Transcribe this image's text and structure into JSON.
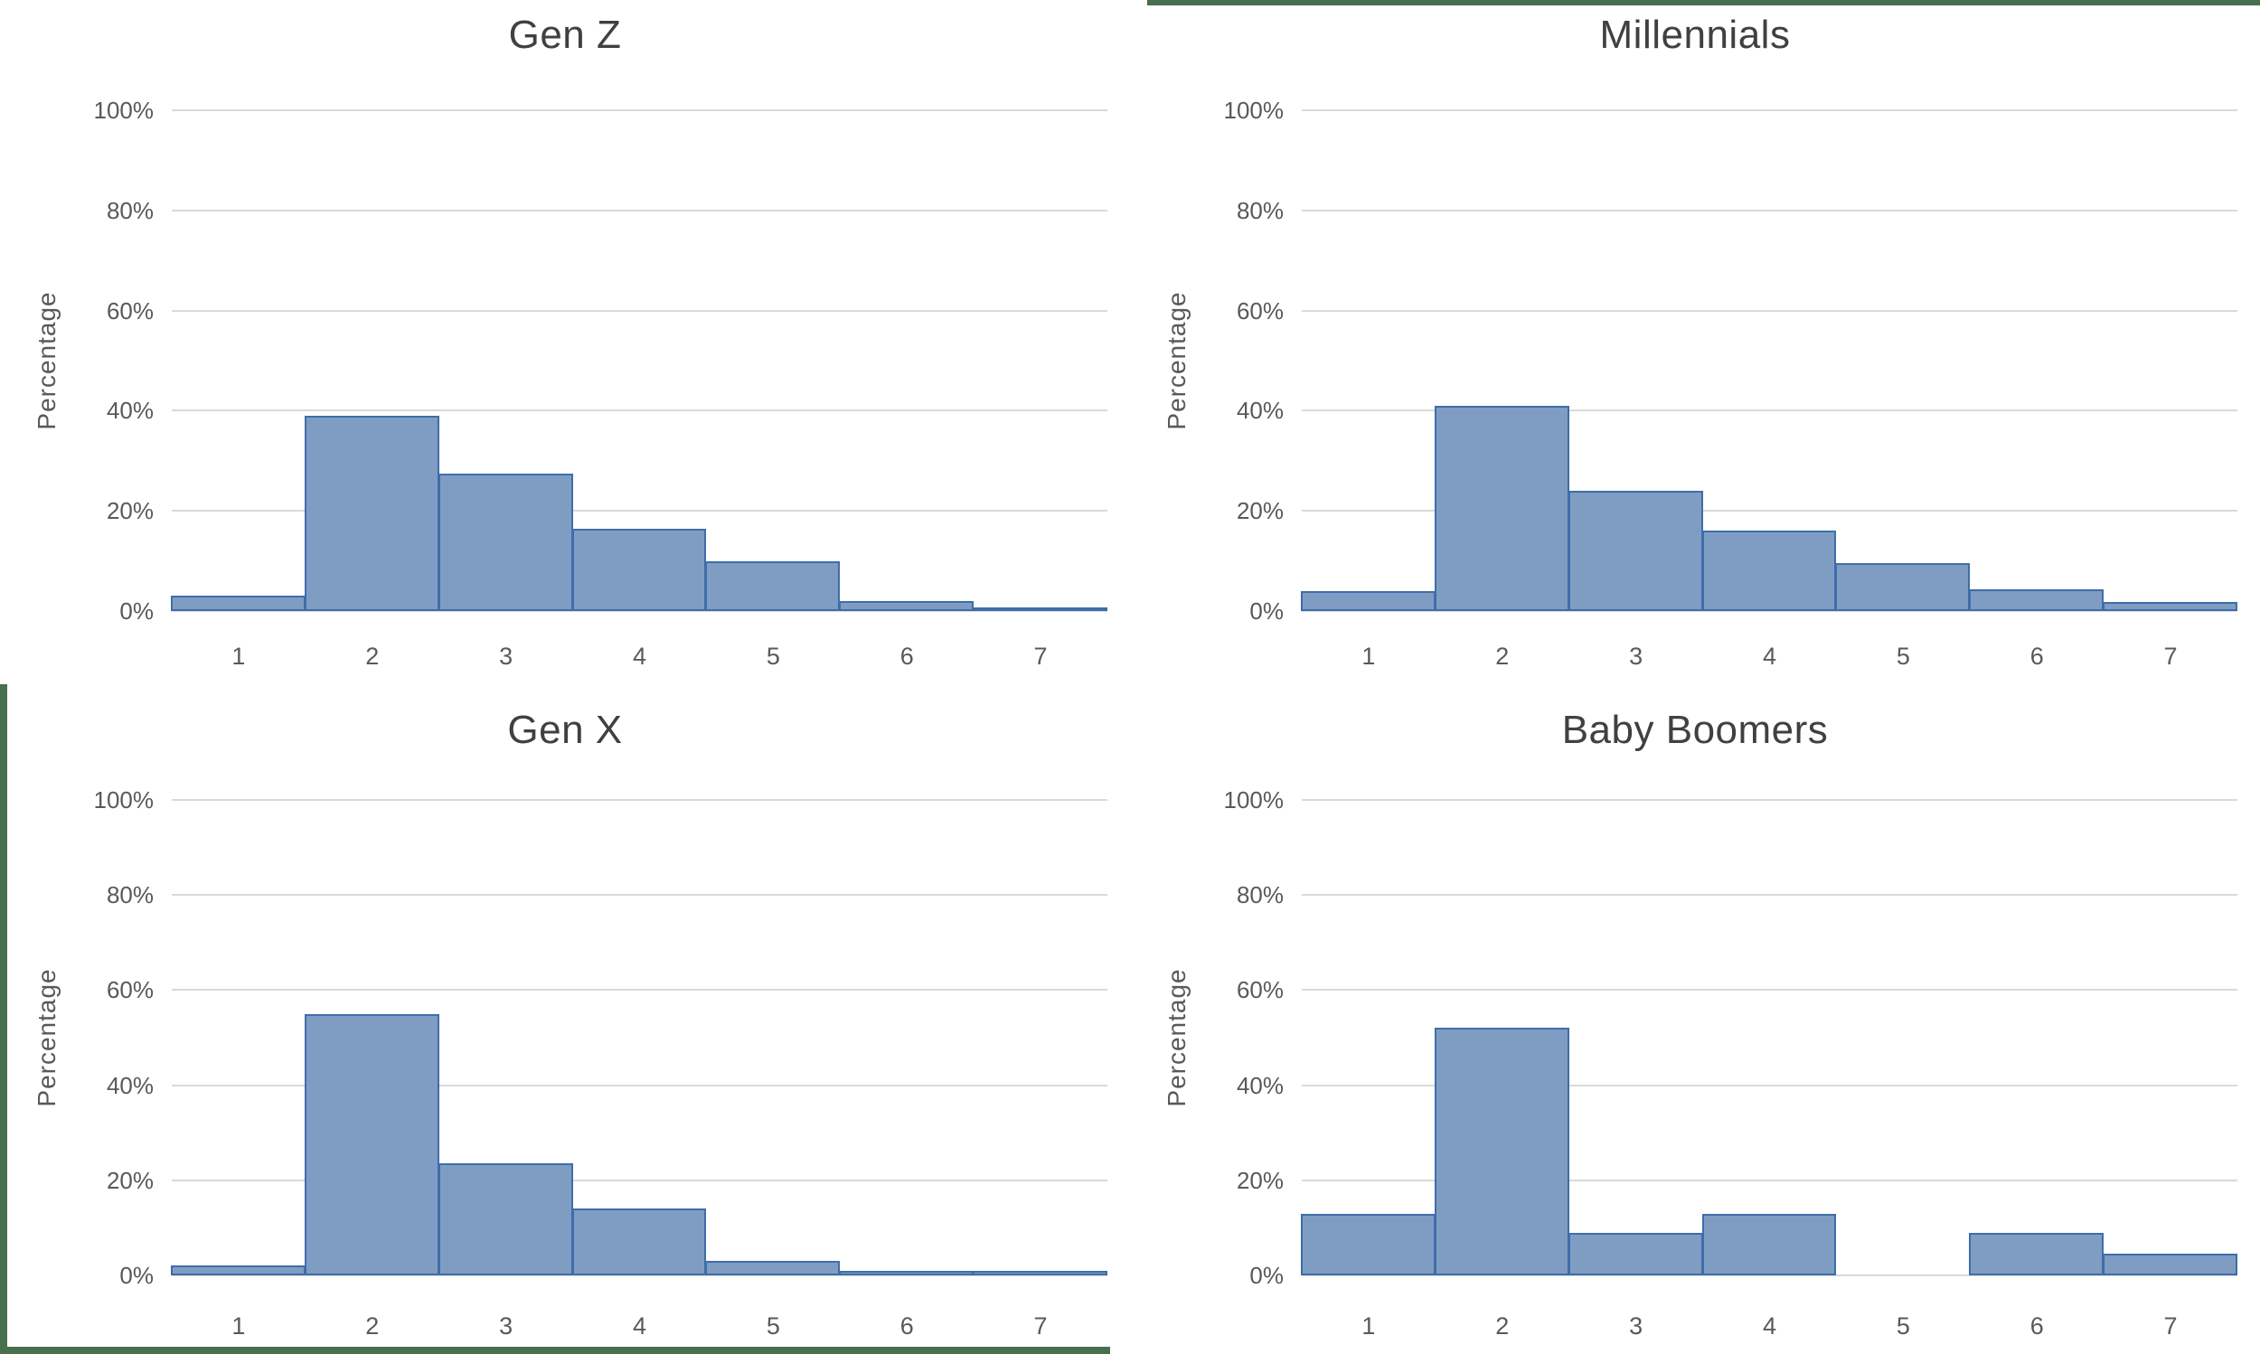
{
  "colors": {
    "bar_fill": "#7f9dc3",
    "bar_border": "#3e6dab",
    "gridline": "#d9d9d9",
    "tick_text": "#595959",
    "title_text": "#404040",
    "frame_green": "#47704e"
  },
  "decorations": {
    "top_right_strip": "dark green horizontal strip along top edge of right half",
    "left_strip": "dark green vertical strip along left edge of bottom half",
    "bottom_strip": "dark green horizontal strip along bottom edge of left half"
  },
  "chart_data": [
    {
      "type": "bar",
      "title": "Gen Z",
      "categories": [
        "1",
        "2",
        "3",
        "4",
        "5",
        "6",
        "7"
      ],
      "values": [
        3,
        39,
        27.5,
        16.5,
        10,
        2,
        0.5
      ],
      "xlabel": "",
      "ylabel": "Percentage",
      "ylim": [
        0,
        100
      ],
      "ytick_values": [
        0,
        20,
        40,
        60,
        80,
        100
      ],
      "yticks": [
        "0%",
        "20%",
        "40%",
        "60%",
        "80%",
        "100%"
      ],
      "grid": true,
      "legend": "none",
      "bar_style": "histogram-touching"
    },
    {
      "type": "bar",
      "title": "Millennials",
      "categories": [
        "1",
        "2",
        "3",
        "4",
        "5",
        "6",
        "7"
      ],
      "values": [
        4,
        41,
        24,
        16,
        9.5,
        4.3,
        1.8
      ],
      "xlabel": "",
      "ylabel": "Percentage",
      "ylim": [
        0,
        100
      ],
      "ytick_values": [
        0,
        20,
        40,
        60,
        80,
        100
      ],
      "yticks": [
        "0%",
        "20%",
        "40%",
        "60%",
        "80%",
        "100%"
      ],
      "grid": true,
      "legend": "none",
      "bar_style": "histogram-touching"
    },
    {
      "type": "bar",
      "title": "Gen X",
      "categories": [
        "1",
        "2",
        "3",
        "4",
        "5",
        "6",
        "7"
      ],
      "values": [
        2,
        55,
        23.5,
        14,
        3,
        1,
        1
      ],
      "xlabel": "",
      "ylabel": "Percentage",
      "ylim": [
        0,
        100
      ],
      "ytick_values": [
        0,
        20,
        40,
        60,
        80,
        100
      ],
      "yticks": [
        "0%",
        "20%",
        "40%",
        "60%",
        "80%",
        "100%"
      ],
      "grid": true,
      "legend": "none",
      "bar_style": "histogram-touching"
    },
    {
      "type": "bar",
      "title": "Baby Boomers",
      "categories": [
        "1",
        "2",
        "3",
        "4",
        "5",
        "6",
        "7"
      ],
      "values": [
        13,
        52,
        9,
        13,
        0,
        9,
        4.5
      ],
      "xlabel": "",
      "ylabel": "Percentage",
      "ylim": [
        0,
        100
      ],
      "ytick_values": [
        0,
        20,
        40,
        60,
        80,
        100
      ],
      "yticks": [
        "0%",
        "20%",
        "40%",
        "60%",
        "80%",
        "100%"
      ],
      "grid": true,
      "legend": "none",
      "bar_style": "histogram-touching"
    }
  ]
}
